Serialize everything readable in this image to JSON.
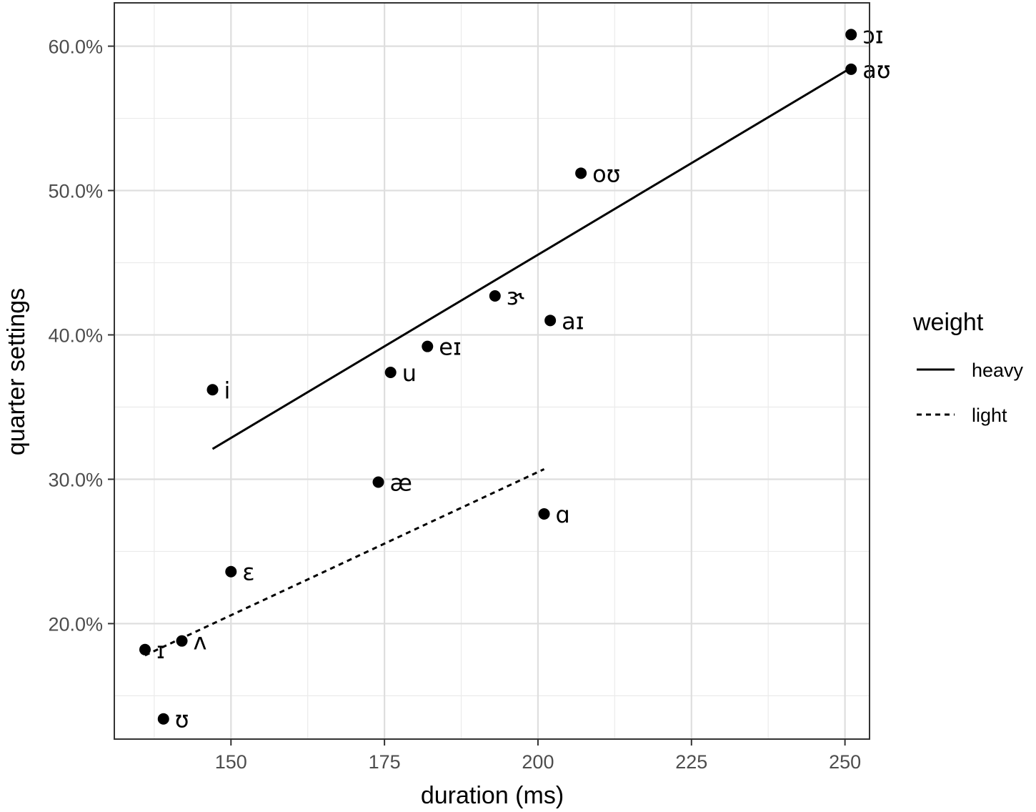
{
  "chart_data": {
    "type": "scatter",
    "xlabel": "duration (ms)",
    "ylabel": "quarter settings",
    "xlim": [
      131,
      254
    ],
    "ylim": [
      0.12,
      0.63
    ],
    "x_ticks": [
      150,
      175,
      200,
      225,
      250
    ],
    "x_tick_labels": [
      "150",
      "175",
      "200",
      "225",
      "250"
    ],
    "y_ticks": [
      0.2,
      0.3,
      0.4,
      0.5,
      0.6
    ],
    "y_tick_labels": [
      "20.0%",
      "30.0%",
      "40.0%",
      "50.0%",
      "60.0%"
    ],
    "grid": true,
    "points": [
      {
        "label": "ɔɪ",
        "x": 251,
        "y": 0.608,
        "weight": "heavy"
      },
      {
        "label": "aʊ",
        "x": 251,
        "y": 0.584,
        "weight": "heavy"
      },
      {
        "label": "oʊ",
        "x": 207,
        "y": 0.512,
        "weight": "heavy"
      },
      {
        "label": "ɝ",
        "x": 193,
        "y": 0.427,
        "weight": "heavy"
      },
      {
        "label": "aɪ",
        "x": 202,
        "y": 0.41,
        "weight": "heavy"
      },
      {
        "label": "eɪ",
        "x": 182,
        "y": 0.392,
        "weight": "heavy"
      },
      {
        "label": "u",
        "x": 176,
        "y": 0.374,
        "weight": "heavy"
      },
      {
        "label": "i",
        "x": 147,
        "y": 0.362,
        "weight": "heavy"
      },
      {
        "label": "æ",
        "x": 174,
        "y": 0.298,
        "weight": "light"
      },
      {
        "label": "ɑ",
        "x": 201,
        "y": 0.276,
        "weight": "light"
      },
      {
        "label": "ɛ",
        "x": 150,
        "y": 0.236,
        "weight": "light"
      },
      {
        "label": "ʌ",
        "x": 142,
        "y": 0.188,
        "weight": "light"
      },
      {
        "label": "ɪ",
        "x": 136,
        "y": 0.182,
        "weight": "light"
      },
      {
        "label": "ʊ",
        "x": 139,
        "y": 0.134,
        "weight": "light"
      }
    ],
    "series": [
      {
        "name": "heavy",
        "line": "solid",
        "x": [
          147,
          251
        ],
        "y": [
          0.321,
          0.585
        ]
      },
      {
        "name": "light",
        "line": "dashed",
        "x": [
          136,
          201
        ],
        "y": [
          0.178,
          0.307
        ]
      }
    ],
    "legend": {
      "title": "weight",
      "position": "right",
      "entries": [
        {
          "name": "heavy",
          "line": "solid"
        },
        {
          "name": "light",
          "line": "dashed"
        }
      ]
    }
  }
}
